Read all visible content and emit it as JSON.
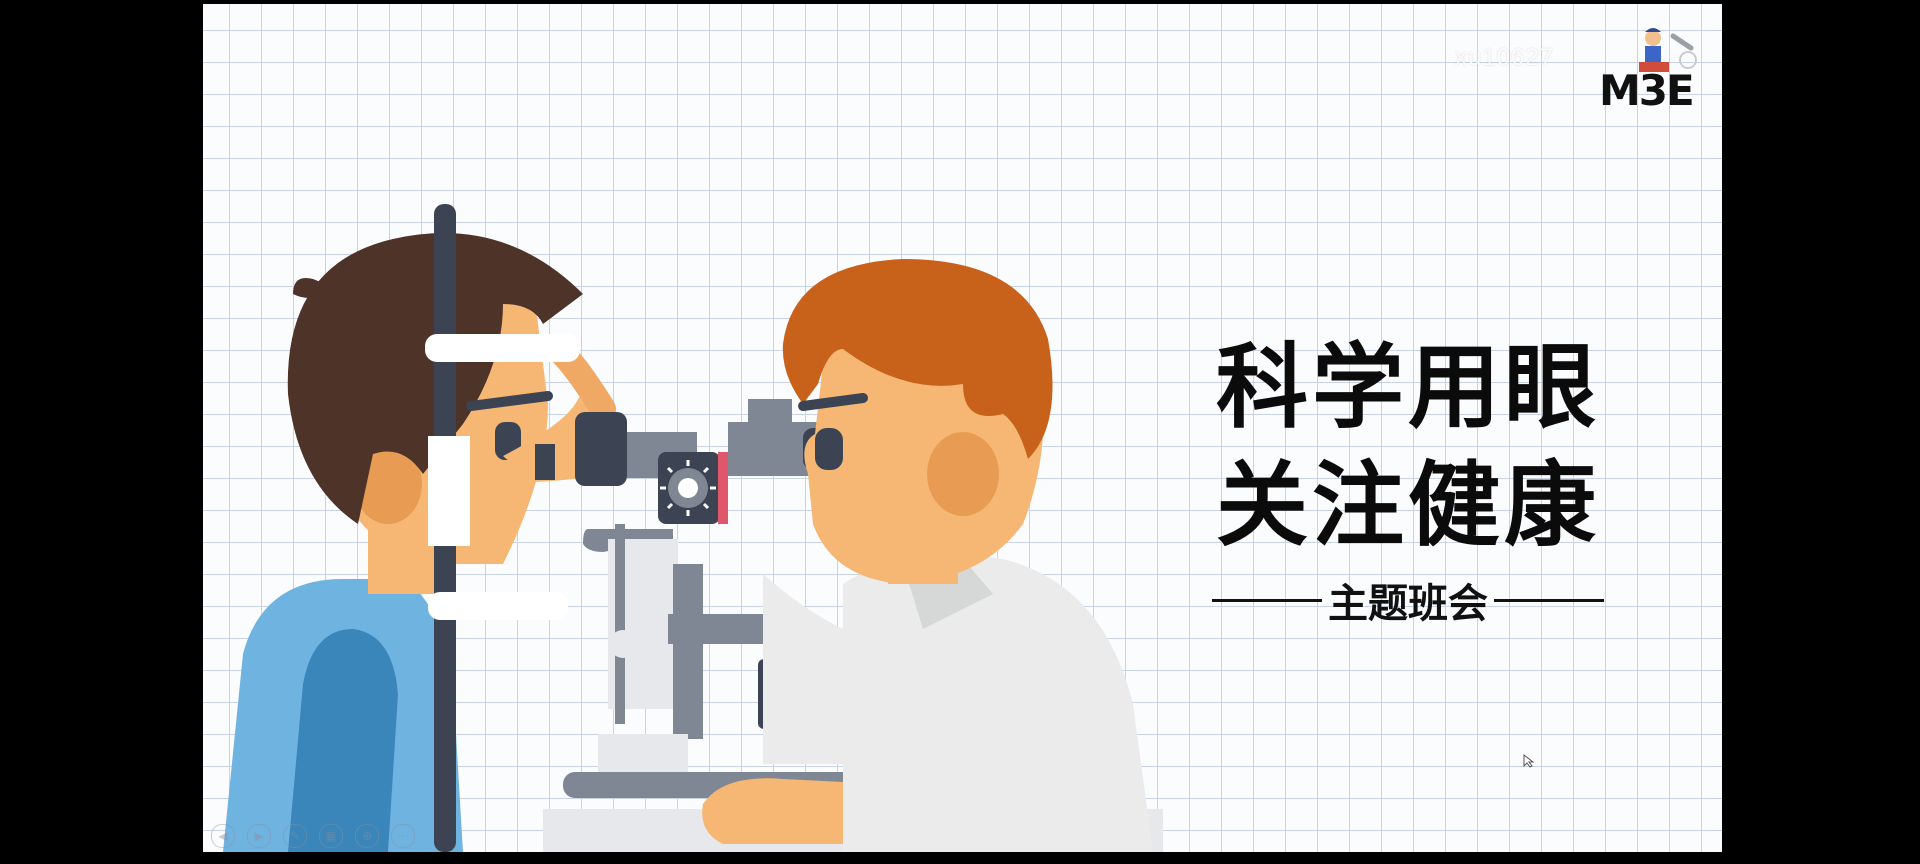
{
  "watermark": {
    "text": "xu10627"
  },
  "logo": {
    "text": "M3E",
    "icon": "boy-with-telescope-logo"
  },
  "title": {
    "line1": "科学用眼",
    "line2": "关注健康"
  },
  "subtitle": {
    "text": "主题班会"
  },
  "illustration": {
    "description_icon": "eye-exam-illustration"
  },
  "toolbar": {
    "icons": [
      {
        "name": "previous-slide-icon",
        "glyph": "◀"
      },
      {
        "name": "next-slide-icon",
        "glyph": "▶"
      },
      {
        "name": "pen-icon",
        "glyph": "✎"
      },
      {
        "name": "grid-view-icon",
        "glyph": "▦"
      },
      {
        "name": "zoom-icon",
        "glyph": "⊕"
      },
      {
        "name": "more-icon",
        "glyph": "⋯"
      }
    ]
  },
  "colors": {
    "background": "#000000",
    "slide": "#fbfcfe",
    "grid": "#c9d3e3",
    "patient_hair": "#4e3329",
    "patient_shirt": "#6fb3e1",
    "doctor_hair": "#c8611a",
    "skin": "#f7b774",
    "coat": "#eaebea",
    "machine_dark": "#3c4454",
    "machine_gray": "#7f8794"
  }
}
